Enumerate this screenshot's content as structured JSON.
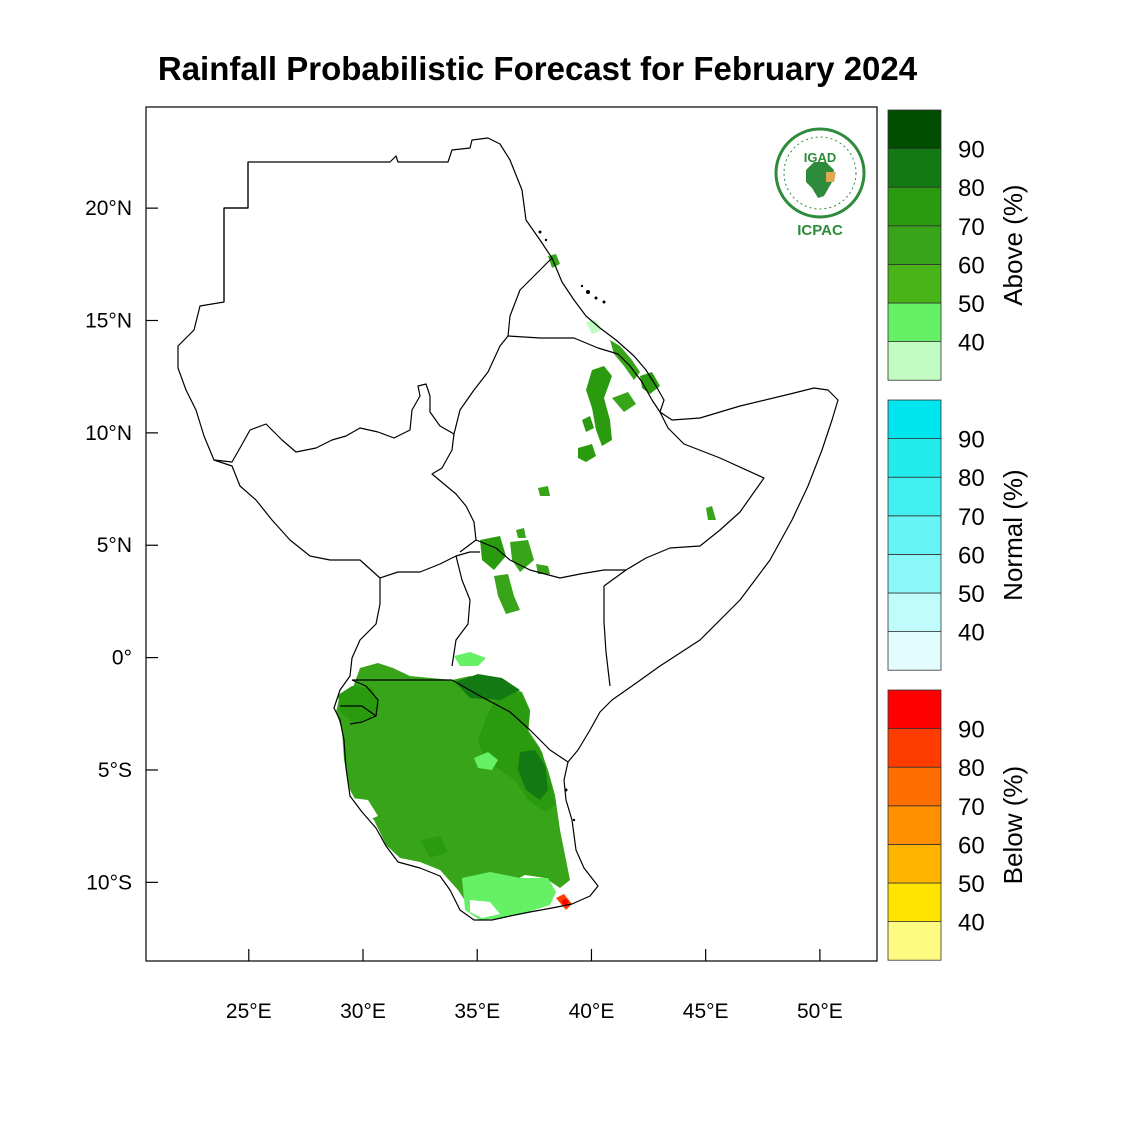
{
  "title": "Rainfall Probabilistic Forecast for February 2024",
  "logo": {
    "top_text": "IGAD",
    "bottom_text": "ICPAC",
    "icon": "igad-icpac-emblem-icon",
    "color": "#2e8b3b"
  },
  "map": {
    "lon_range": [
      20.5,
      52.5
    ],
    "lat_range": [
      -13.5,
      24.5
    ],
    "x_ticks": [
      {
        "value": 25,
        "label": "25°E"
      },
      {
        "value": 30,
        "label": "30°E"
      },
      {
        "value": 35,
        "label": "35°E"
      },
      {
        "value": 40,
        "label": "40°E"
      },
      {
        "value": 45,
        "label": "45°E"
      },
      {
        "value": 50,
        "label": "50°E"
      }
    ],
    "y_ticks": [
      {
        "value": 20,
        "label": "20°N"
      },
      {
        "value": 15,
        "label": "15°N"
      },
      {
        "value": 10,
        "label": "10°N"
      },
      {
        "value": 5,
        "label": "5°N"
      },
      {
        "value": 0,
        "label": "0°"
      },
      {
        "value": -5,
        "label": "5°S"
      },
      {
        "value": -10,
        "label": "10°S"
      }
    ]
  },
  "colorbars": [
    {
      "title": "Above (%)",
      "labels": [
        "40",
        "50",
        "60",
        "70",
        "80",
        "90"
      ],
      "colors": [
        "#c2fcc2",
        "#66f066",
        "#48b418",
        "#38a41a",
        "#2a9a0e",
        "#137913",
        "#004d00"
      ]
    },
    {
      "title": "Normal (%)",
      "labels": [
        "40",
        "50",
        "60",
        "70",
        "80",
        "90"
      ],
      "colors": [
        "#e2fdfd",
        "#c0fcfc",
        "#8af8f8",
        "#66f4f4",
        "#40f0f0",
        "#22ecec",
        "#00e6f0"
      ]
    },
    {
      "title": "Below (%)",
      "labels": [
        "40",
        "50",
        "60",
        "70",
        "80",
        "90"
      ],
      "colors": [
        "#fffa82",
        "#ffe400",
        "#ffb400",
        "#ff9000",
        "#ff6e00",
        "#ff3c00",
        "#ff0000"
      ]
    }
  ]
}
